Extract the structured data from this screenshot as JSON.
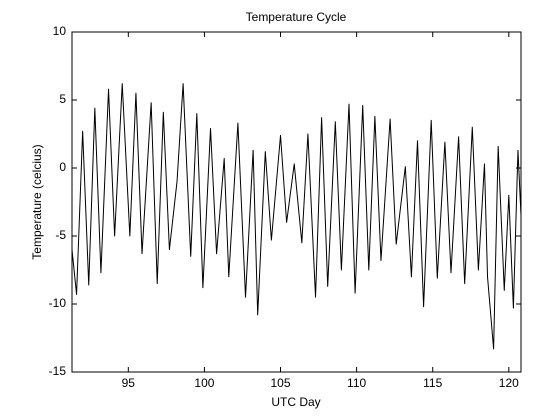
{
  "chart_data": {
    "type": "line",
    "title": "Temperature Cycle",
    "xlabel": "UTC Day",
    "ylabel": "Temperature (celcius)",
    "x": [
      91.3,
      91.6,
      92.0,
      92.4,
      92.8,
      93.2,
      93.7,
      94.1,
      94.6,
      95.1,
      95.5,
      95.9,
      96.5,
      96.9,
      97.3,
      97.7,
      98.2,
      98.6,
      99.1,
      99.5,
      99.9,
      100.4,
      100.8,
      101.3,
      101.6,
      102.2,
      102.7,
      103.2,
      103.5,
      104.0,
      104.4,
      105.0,
      105.4,
      105.9,
      106.4,
      106.8,
      107.3,
      107.7,
      108.1,
      108.6,
      109.0,
      109.5,
      109.9,
      110.4,
      110.8,
      111.2,
      111.6,
      112.2,
      112.6,
      113.2,
      113.6,
      114.0,
      114.4,
      114.9,
      115.3,
      115.8,
      116.2,
      116.7,
      117.1,
      117.6,
      118.0,
      118.4,
      118.6,
      119.0,
      119.3,
      119.7,
      120.0,
      120.3,
      120.6,
      120.8
    ],
    "series": [
      {
        "name": "Temperature",
        "color": "#000000",
        "values": [
          -6,
          -9.3,
          2.7,
          -8.6,
          4.4,
          -7.7,
          5.8,
          -5,
          6.2,
          -5,
          5.5,
          -6.3,
          4.8,
          -8.5,
          4.1,
          -6,
          -1,
          6.2,
          -6.5,
          4,
          -8.8,
          2.9,
          -6.3,
          0.7,
          -8,
          3.3,
          -9.5,
          1.3,
          -10.8,
          1.2,
          -5.3,
          2.4,
          -4,
          0.3,
          -5.5,
          2.5,
          -9.5,
          3.7,
          -8.7,
          3.4,
          -7.5,
          4.7,
          -9.2,
          4.6,
          -7.5,
          3.8,
          -6.8,
          3.6,
          -5.6,
          0.1,
          -8,
          2,
          -10.2,
          3.5,
          -8.1,
          1.9,
          -7.7,
          2.3,
          -8.5,
          3,
          -7.5,
          0.3,
          -8,
          -13.3,
          1.6,
          -9,
          -2,
          -10.3,
          1.3,
          -3.5
        ]
      }
    ],
    "xlim": [
      91.3,
      120.8
    ],
    "ylim": [
      -15,
      10
    ],
    "xticks": [
      95,
      100,
      105,
      110,
      115,
      120
    ],
    "yticks": [
      -15,
      -10,
      -5,
      0,
      5,
      10
    ],
    "grid": false
  }
}
